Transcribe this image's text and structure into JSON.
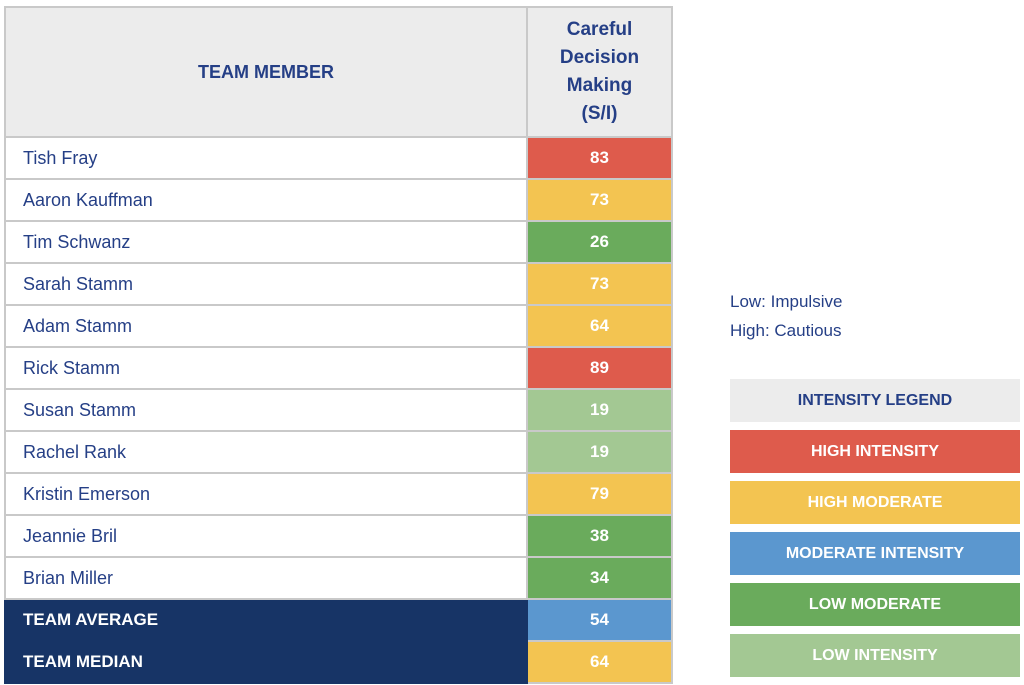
{
  "table": {
    "header_member": "TEAM MEMBER",
    "header_metric_lines": [
      "Careful",
      "Decision",
      "Making",
      "(S/I)"
    ],
    "rows": [
      {
        "name": "Tish Fray",
        "value": "83",
        "level": "high"
      },
      {
        "name": "Aaron Kauffman",
        "value": "73",
        "level": "high_moderate"
      },
      {
        "name": "Tim Schwanz",
        "value": "26",
        "level": "low_moderate"
      },
      {
        "name": "Sarah Stamm",
        "value": "73",
        "level": "high_moderate"
      },
      {
        "name": "Adam Stamm",
        "value": "64",
        "level": "high_moderate"
      },
      {
        "name": "Rick Stamm",
        "value": "89",
        "level": "high"
      },
      {
        "name": "Susan Stamm",
        "value": "19",
        "level": "low"
      },
      {
        "name": "Rachel Rank",
        "value": "19",
        "level": "low"
      },
      {
        "name": "Kristin Emerson",
        "value": "79",
        "level": "high_moderate"
      },
      {
        "name": "Jeannie Bril",
        "value": "38",
        "level": "low_moderate"
      },
      {
        "name": "Brian Miller",
        "value": "34",
        "level": "low_moderate"
      }
    ],
    "summary": [
      {
        "name": "TEAM AVERAGE",
        "value": "54",
        "level": "moderate"
      },
      {
        "name": "TEAM MEDIAN",
        "value": "64",
        "level": "high_moderate"
      }
    ]
  },
  "scale_notes": [
    "Low: Impulsive",
    "High: Cautious"
  ],
  "legend": {
    "title": "INTENSITY LEGEND",
    "items": [
      {
        "key": "high",
        "label": "HIGH INTENSITY"
      },
      {
        "key": "high_moderate",
        "label": "HIGH MODERATE"
      },
      {
        "key": "moderate",
        "label": "MODERATE INTENSITY"
      },
      {
        "key": "low_moderate",
        "label": "LOW MODERATE"
      },
      {
        "key": "low",
        "label": "LOW INTENSITY"
      }
    ]
  },
  "colors": {
    "high": "#de5b4c",
    "high_moderate": "#f3c451",
    "moderate": "#5b97cf",
    "low_moderate": "#6aab5c",
    "low": "#a3c893",
    "summary_bg": "#173466",
    "header_bg": "#ececec",
    "text_navy": "#253f86"
  }
}
